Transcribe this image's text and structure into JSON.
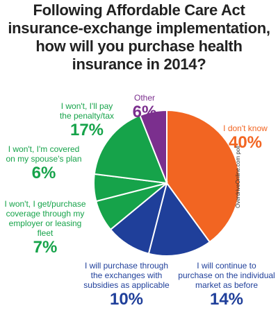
{
  "title_lines": [
    "Following Affordable Care Act",
    "insurance-exchange implementation,",
    "how will you purchase health",
    "insurance in 2014?"
  ],
  "credit": "OverdriveOnline.com poll",
  "chart_data": {
    "type": "pie",
    "title": "Following Affordable Care Act insurance-exchange implementation, how will you purchase health insurance in 2014?",
    "slices": [
      {
        "label": "I don't know",
        "value": 40,
        "value_label": "40%",
        "color": "#f26522"
      },
      {
        "label": "I will continue to purchase on the individual market as before",
        "value": 14,
        "value_label": "14%",
        "color": "#1f3f9a"
      },
      {
        "label": "I will purchase through the exchanges with subsidies as applicable",
        "value": 10,
        "value_label": "10%",
        "color": "#1f3f9a"
      },
      {
        "label": "I won't, I get/purchase coverage through my employer or leasing fleet",
        "value": 7,
        "value_label": "7%",
        "color": "#16a34a"
      },
      {
        "label": "I won't, I'm covered on my spouse's plan",
        "value": 6,
        "value_label": "6%",
        "color": "#16a34a"
      },
      {
        "label": "I won't, I'll pay the penalty/tax",
        "value": 17,
        "value_label": "17%",
        "color": "#16a34a"
      },
      {
        "label": "Other",
        "value": 6,
        "value_label": "6%",
        "color": "#7b2f8e"
      }
    ],
    "label_lines": [
      [
        "I don't know"
      ],
      [
        "I will continue to",
        "purchase on the individual",
        "market as before"
      ],
      [
        "I will purchase through",
        "the exchanges with",
        "subsidies as applicable"
      ],
      [
        "I won't, I get/purchase",
        "coverage through my",
        "employer or leasing fleet"
      ],
      [
        "I won't, I'm covered",
        "on my spouse's plan"
      ],
      [
        "I won't, I'll pay",
        "the penalty/tax"
      ],
      [
        "Other"
      ]
    ]
  }
}
